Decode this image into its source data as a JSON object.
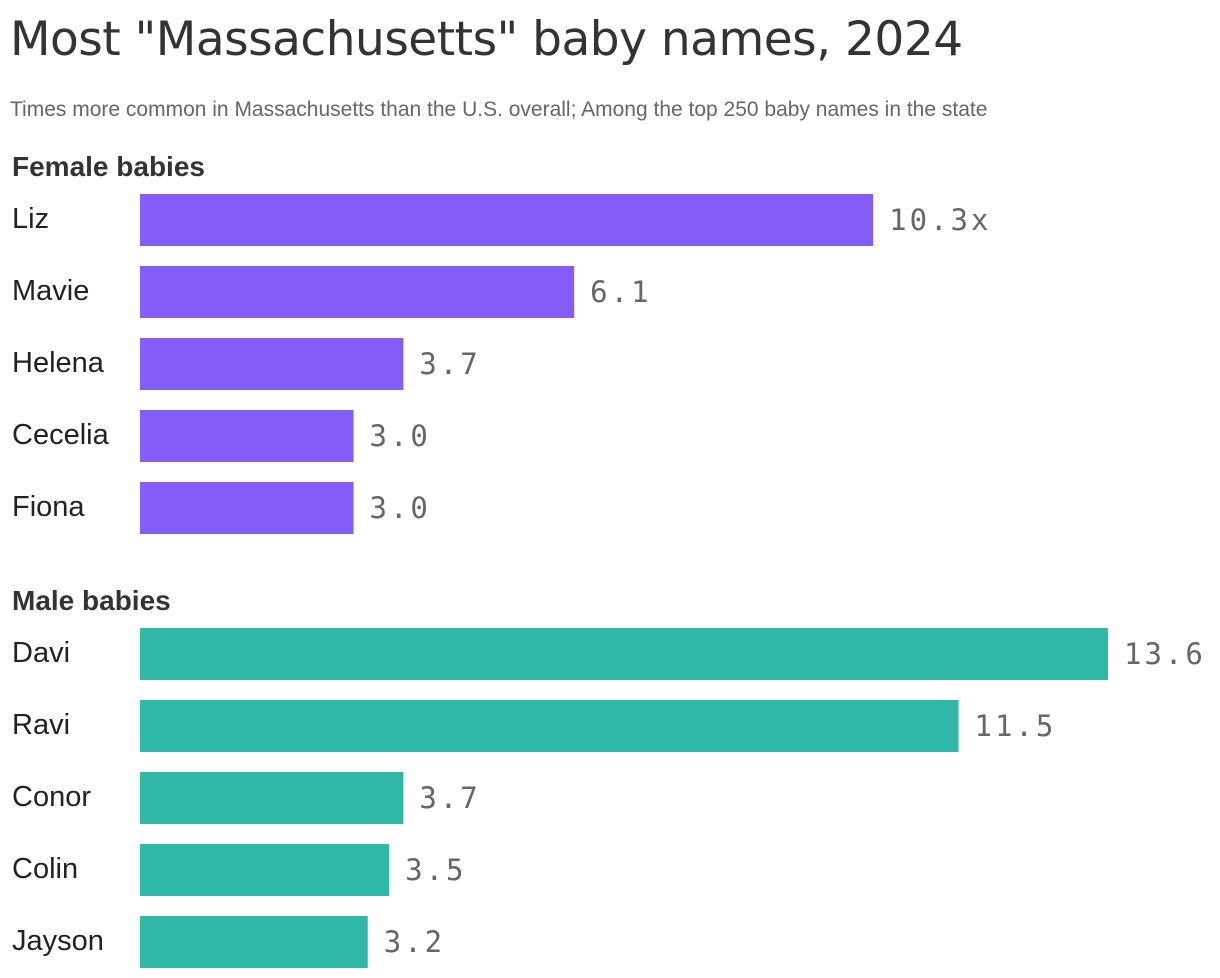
{
  "title": "Most \"Massachusetts\" baby names, 2024",
  "subtitle": "Times more common in Massachusetts than the U.S. overall; Among the top 250 baby names in the state",
  "chart_data": [
    {
      "type": "bar",
      "orientation": "horizontal",
      "group_title": "Female babies",
      "color": "#855CF8",
      "categories": [
        "Liz",
        "Mavie",
        "Helena",
        "Cecelia",
        "Fiona"
      ],
      "values": [
        10.3,
        6.1,
        3.7,
        3.0,
        3.0
      ],
      "value_labels": [
        "10.3x",
        "6.1",
        "3.7",
        "3.0",
        "3.0"
      ]
    },
    {
      "type": "bar",
      "orientation": "horizontal",
      "group_title": "Male babies",
      "color": "#2FB7A8",
      "categories": [
        "Davi",
        "Ravi",
        "Conor",
        "Colin",
        "Jayson"
      ],
      "values": [
        13.6,
        11.5,
        3.7,
        3.5,
        3.2
      ],
      "value_labels": [
        "13.6",
        "11.5",
        "3.7",
        "3.5",
        "3.2"
      ]
    }
  ]
}
